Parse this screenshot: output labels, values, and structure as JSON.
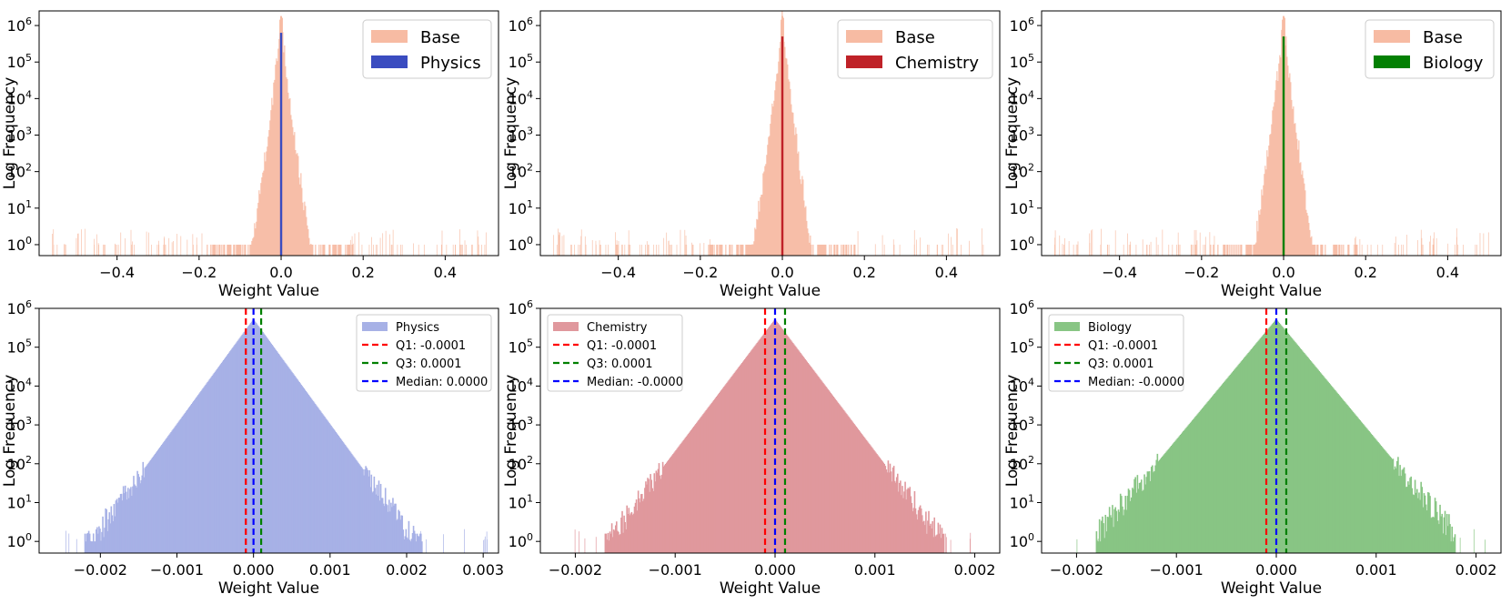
{
  "colors": {
    "base": "#f7bba3",
    "physics_top": "#3a4cc0",
    "chemistry_top": "#bf2228",
    "biology_top": "#038003",
    "physics_bottom": "#a7b1e6",
    "chemistry_bottom": "#e0989d",
    "biology_bottom": "#88c584",
    "q1": "#ff0000",
    "q3": "#008000",
    "median": "#0000ff"
  },
  "chart_data": [
    {
      "type": "bar",
      "subtype": "histogram",
      "panel": "top-left",
      "xlabel": "Weight Value",
      "ylabel": "Log Frequency",
      "yscale": "log",
      "xlim": [
        -0.59,
        0.53
      ],
      "ylim_exp": [
        -0.3,
        6.4
      ],
      "xticks": [
        -0.4,
        -0.2,
        0.0,
        0.2,
        0.4
      ],
      "xtick_labels": [
        "−0.4",
        "−0.2",
        "0.0",
        "0.2",
        "0.4"
      ],
      "yticks": [
        0,
        1,
        2,
        3,
        4,
        5,
        6
      ],
      "legend_position": "top-right",
      "legend": [
        "Base",
        "Physics"
      ],
      "series": [
        {
          "name": "Base",
          "color_key": "base",
          "center": 0.0,
          "peak_exp": 6.26,
          "sigma": 0.025,
          "tail_end": 0.18,
          "sparse_range": [
            -0.56,
            0.5
          ]
        },
        {
          "name": "Physics",
          "color_key": "physics_top",
          "center": 0.0,
          "peak_exp": 5.8,
          "width": 0.003
        }
      ]
    },
    {
      "type": "bar",
      "subtype": "histogram",
      "panel": "top-middle",
      "xlabel": "Weight Value",
      "ylabel": "Log Frequency",
      "yscale": "log",
      "xlim": [
        -0.59,
        0.53
      ],
      "ylim_exp": [
        -0.3,
        6.4
      ],
      "xticks": [
        -0.4,
        -0.2,
        0.0,
        0.2,
        0.4
      ],
      "xtick_labels": [
        "−0.4",
        "−0.2",
        "0.0",
        "0.2",
        "0.4"
      ],
      "yticks": [
        0,
        1,
        2,
        3,
        4,
        5,
        6
      ],
      "legend_position": "top-right",
      "legend": [
        "Base",
        "Chemistry"
      ],
      "series": [
        {
          "name": "Base",
          "color_key": "base",
          "center": 0.0,
          "peak_exp": 6.26,
          "sigma": 0.025,
          "tail_end": 0.18,
          "sparse_range": [
            -0.56,
            0.5
          ]
        },
        {
          "name": "Chemistry",
          "color_key": "chemistry_top",
          "center": 0.0,
          "peak_exp": 5.7,
          "width": 0.003
        }
      ]
    },
    {
      "type": "bar",
      "subtype": "histogram",
      "panel": "top-right",
      "xlabel": "Weight Value",
      "ylabel": "Log Frequency",
      "yscale": "log",
      "xlim": [
        -0.59,
        0.53
      ],
      "ylim_exp": [
        -0.3,
        6.4
      ],
      "xticks": [
        -0.4,
        -0.2,
        0.0,
        0.2,
        0.4
      ],
      "xtick_labels": [
        "−0.4",
        "−0.2",
        "0.0",
        "0.2",
        "0.4"
      ],
      "yticks": [
        0,
        1,
        2,
        3,
        4,
        5,
        6
      ],
      "legend_position": "top-right",
      "legend": [
        "Base",
        "Biology"
      ],
      "series": [
        {
          "name": "Base",
          "color_key": "base",
          "center": 0.0,
          "peak_exp": 6.26,
          "sigma": 0.025,
          "tail_end": 0.18,
          "sparse_range": [
            -0.56,
            0.5
          ]
        },
        {
          "name": "Biology",
          "color_key": "biology_top",
          "center": 0.0,
          "peak_exp": 5.7,
          "width": 0.003
        }
      ]
    },
    {
      "type": "bar",
      "subtype": "histogram",
      "panel": "bottom-left",
      "xlabel": "Weight Value",
      "ylabel": "Log Frequency",
      "yscale": "log",
      "xlim": [
        -0.0028,
        0.0032
      ],
      "ylim_exp": [
        -0.3,
        6.0
      ],
      "xticks": [
        -0.002,
        -0.001,
        0.0,
        0.001,
        0.002,
        0.003
      ],
      "xtick_labels": [
        "−0.002",
        "−0.001",
        "0.000",
        "0.001",
        "0.002",
        "0.003"
      ],
      "yticks": [
        0,
        1,
        2,
        3,
        4,
        5,
        6
      ],
      "legend_position": "top-right",
      "legend": [
        "Physics",
        "Q1: -0.0001",
        "Q3: 0.0001",
        "Median: 0.0000"
      ],
      "series": [
        {
          "name": "Physics",
          "color_key": "physics_bottom",
          "center": 0.0,
          "peak_exp": 5.72,
          "decay_per_unit": 2700,
          "tail_end": 0.0022,
          "sparse_range": [
            -0.0026,
            0.0031
          ]
        }
      ],
      "vlines": [
        {
          "name": "Q1",
          "value": -0.0001,
          "color_key": "q1"
        },
        {
          "name": "Q3",
          "value": 0.0001,
          "color_key": "q3"
        },
        {
          "name": "Median",
          "value": 0.0,
          "color_key": "median"
        }
      ]
    },
    {
      "type": "bar",
      "subtype": "histogram",
      "panel": "bottom-middle",
      "xlabel": "Weight Value",
      "ylabel": "Log Frequency",
      "yscale": "log",
      "xlim": [
        -0.00235,
        0.00225
      ],
      "ylim_exp": [
        -0.3,
        6.0
      ],
      "xticks": [
        -0.002,
        -0.001,
        0.0,
        0.001,
        0.002
      ],
      "xtick_labels": [
        "−0.002",
        "−0.001",
        "0.000",
        "0.001",
        "0.002"
      ],
      "yticks": [
        0,
        1,
        2,
        3,
        4,
        5,
        6
      ],
      "legend_position": "top-left",
      "legend": [
        "Chemistry",
        "Q1: -0.0001",
        "Q3: 0.0001",
        "Median: -0.0000"
      ],
      "series": [
        {
          "name": "Chemistry",
          "color_key": "chemistry_bottom",
          "center": 0.0,
          "peak_exp": 5.72,
          "decay_per_unit": 3400,
          "tail_end": 0.0017,
          "sparse_range": [
            -0.0021,
            0.0021
          ]
        }
      ],
      "vlines": [
        {
          "name": "Q1",
          "value": -0.0001,
          "color_key": "q1"
        },
        {
          "name": "Q3",
          "value": 0.0001,
          "color_key": "q3"
        },
        {
          "name": "Median",
          "value": 0.0,
          "color_key": "median"
        }
      ]
    },
    {
      "type": "bar",
      "subtype": "histogram",
      "panel": "bottom-right",
      "xlabel": "Weight Value",
      "ylabel": "Log Frequency",
      "yscale": "log",
      "xlim": [
        -0.00235,
        0.00225
      ],
      "ylim_exp": [
        -0.3,
        6.0
      ],
      "xticks": [
        -0.002,
        -0.001,
        0.0,
        0.001,
        0.002
      ],
      "xtick_labels": [
        "−0.002",
        "−0.001",
        "0.000",
        "0.001",
        "0.002"
      ],
      "yticks": [
        0,
        1,
        2,
        3,
        4,
        5,
        6
      ],
      "legend_position": "top-left",
      "legend": [
        "Biology",
        "Q1: -0.0001",
        "Q3: 0.0001",
        "Median: -0.0000"
      ],
      "series": [
        {
          "name": "Biology",
          "color_key": "biology_bottom",
          "center": 0.0,
          "peak_exp": 5.72,
          "decay_per_unit": 3100,
          "tail_end": 0.0018,
          "sparse_range": [
            -0.0021,
            0.0021
          ]
        }
      ],
      "vlines": [
        {
          "name": "Q1",
          "value": -0.0001,
          "color_key": "q1"
        },
        {
          "name": "Q3",
          "value": 0.0001,
          "color_key": "q3"
        },
        {
          "name": "Median",
          "value": 0.0,
          "color_key": "median"
        }
      ]
    }
  ]
}
